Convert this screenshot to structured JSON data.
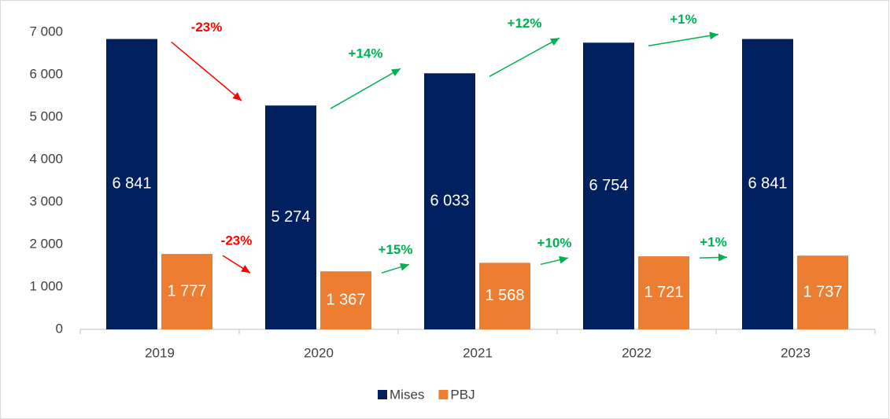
{
  "chart_data": {
    "type": "bar",
    "categories": [
      "2019",
      "2020",
      "2021",
      "2022",
      "2023"
    ],
    "series": [
      {
        "name": "Mises",
        "color": "#002060",
        "values": [
          6841,
          5274,
          6033,
          6754,
          6841
        ],
        "value_labels": [
          "6 841",
          "5 274",
          "6 033",
          "6 754",
          "6 841"
        ],
        "annotations": [
          {
            "text": "-23%",
            "color": "#ff0000"
          },
          {
            "text": "+14%",
            "color": "#00b050"
          },
          {
            "text": "+12%",
            "color": "#00b050"
          },
          {
            "text": "+1%",
            "color": "#00b050"
          }
        ]
      },
      {
        "name": "PBJ",
        "color": "#ed7d31",
        "values": [
          1777,
          1367,
          1568,
          1721,
          1737
        ],
        "value_labels": [
          "1 777",
          "1 367",
          "1 568",
          "1 721",
          "1 737"
        ],
        "annotations": [
          {
            "text": "-23%",
            "color": "#ff0000"
          },
          {
            "text": "+15%",
            "color": "#00b050"
          },
          {
            "text": "+10%",
            "color": "#00b050"
          },
          {
            "text": "+1%",
            "color": "#00b050"
          }
        ]
      }
    ],
    "ylim": [
      0,
      7000
    ],
    "yticks": [
      0,
      {
        "value": 1000,
        "label": "1 000"
      },
      {
        "value": 2000,
        "label": "2 000"
      },
      {
        "value": 3000,
        "label": "3 000"
      },
      {
        "value": 4000,
        "label": "4 000"
      },
      {
        "value": 5000,
        "label": "5 000"
      },
      {
        "value": 6000,
        "label": "6 000"
      },
      {
        "value": 7000,
        "label": "7 000"
      }
    ],
    "grid": false,
    "legend": "bottom"
  }
}
